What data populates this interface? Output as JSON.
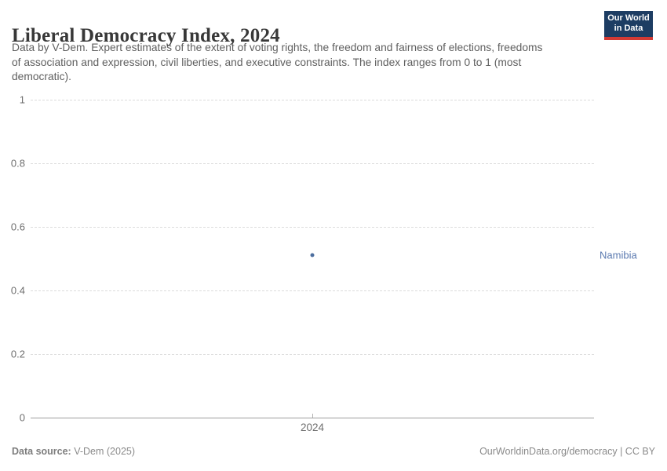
{
  "header": {
    "title": "Liberal Democracy Index, 2024",
    "subtitle_lines": [
      "Data by V-Dem. Expert estimates of the extent of voting rights, the freedom and fairness of elections, freedoms",
      "of association and expression, civil liberties, and executive constraints. The index ranges from 0 to 1 (most",
      "democratic)."
    ],
    "logo": {
      "line1": "Our World",
      "line2": "in Data",
      "bg_color": "#1d3d63",
      "accent_color": "#d33a34"
    }
  },
  "chart_data": {
    "type": "scatter",
    "title": "Liberal Democracy Index, 2024",
    "x": [
      2024
    ],
    "xtick_labels": [
      "2024"
    ],
    "series": [
      {
        "name": "Namibia",
        "values": [
          0.51
        ],
        "color": "#4d6e9f",
        "label_color": "#5b7ab0"
      }
    ],
    "xlabel": "",
    "ylabel": "",
    "ylim": [
      0,
      1
    ],
    "yticks": [
      0,
      0.2,
      0.4,
      0.6,
      0.8,
      1
    ],
    "ytick_labels": [
      "0",
      "0.2",
      "0.4",
      "0.6",
      "0.8",
      "1"
    ],
    "grid": "horizontal dashed, solid zero baseline",
    "legend_position": "entity label right of plot"
  },
  "footer": {
    "source_label": "Data source:",
    "source_value": "V-Dem (2025)",
    "credit": "OurWorldinData.org/democracy | CC BY"
  }
}
